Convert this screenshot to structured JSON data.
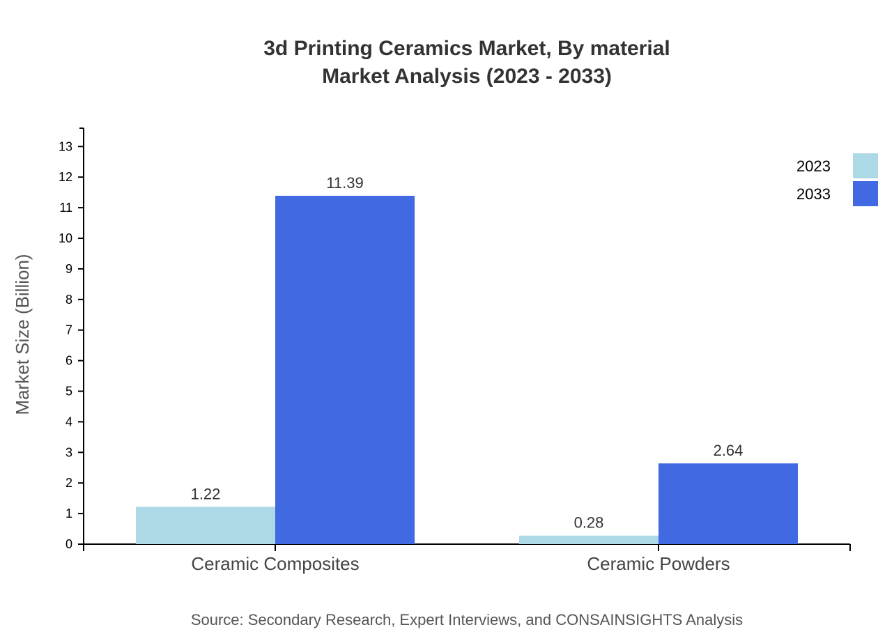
{
  "chart_data": {
    "type": "bar",
    "title": "3d Printing Ceramics Market, By material",
    "subtitle": "Market Analysis (2023 - 2033)",
    "xlabel": "",
    "ylabel": "Market Size (Billion)",
    "categories": [
      "Ceramic Composites",
      "Ceramic Powders"
    ],
    "series": [
      {
        "name": "2023",
        "color": "#add8e6",
        "values": [
          1.22,
          0.28
        ]
      },
      {
        "name": "2033",
        "color": "#4169e1",
        "values": [
          11.39,
          2.64
        ]
      }
    ],
    "ylim": [
      0,
      13.6
    ],
    "yticks": [
      0,
      1,
      2,
      3,
      4,
      5,
      6,
      7,
      8,
      9,
      10,
      11,
      12,
      13
    ],
    "grid": false,
    "legend_position": "top-right"
  },
  "header": {
    "title": "3d Printing Ceramics Market, By material",
    "subtitle": "Market Analysis (2023 - 2033)"
  },
  "footer": {
    "source": "Source: Secondary Research, Expert Interviews, and CONSAINSIGHTS Analysis"
  }
}
